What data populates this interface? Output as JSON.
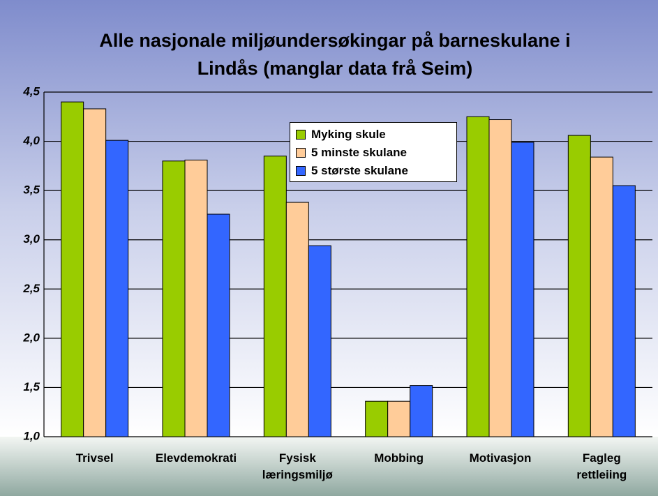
{
  "chart_data": {
    "type": "bar",
    "title": "Alle nasjonale miljøundersøkingar på barneskulane i Lindås (manglar data frå Seim)",
    "categories": [
      "Trivsel",
      "Elevdemokrati",
      "Fysisk læringsmiljø",
      "Mobbing",
      "Motivasjon",
      "Fagleg rettleiing"
    ],
    "series": [
      {
        "name": "Myking skule",
        "color": "#99cc00",
        "values": [
          4.4,
          3.8,
          3.85,
          1.36,
          4.25,
          4.06
        ]
      },
      {
        "name": "5 minste skulane",
        "color": "#ffcc99",
        "values": [
          4.33,
          3.81,
          3.38,
          1.36,
          4.22,
          3.84
        ]
      },
      {
        "name": "5 største skulane",
        "color": "#3366ff",
        "values": [
          4.01,
          3.26,
          2.94,
          1.52,
          3.99,
          3.55
        ]
      }
    ],
    "ylim": [
      1.0,
      4.5
    ],
    "yticks": [
      {
        "value": 1.0,
        "label": "1,0"
      },
      {
        "value": 1.5,
        "label": "1,5"
      },
      {
        "value": 2.0,
        "label": "2,0"
      },
      {
        "value": 2.5,
        "label": "2,5"
      },
      {
        "value": 3.0,
        "label": "3,0"
      },
      {
        "value": 3.5,
        "label": "3,5"
      },
      {
        "value": 4.0,
        "label": "4,0"
      },
      {
        "value": 4.5,
        "label": "4,5"
      }
    ],
    "grid": true
  }
}
